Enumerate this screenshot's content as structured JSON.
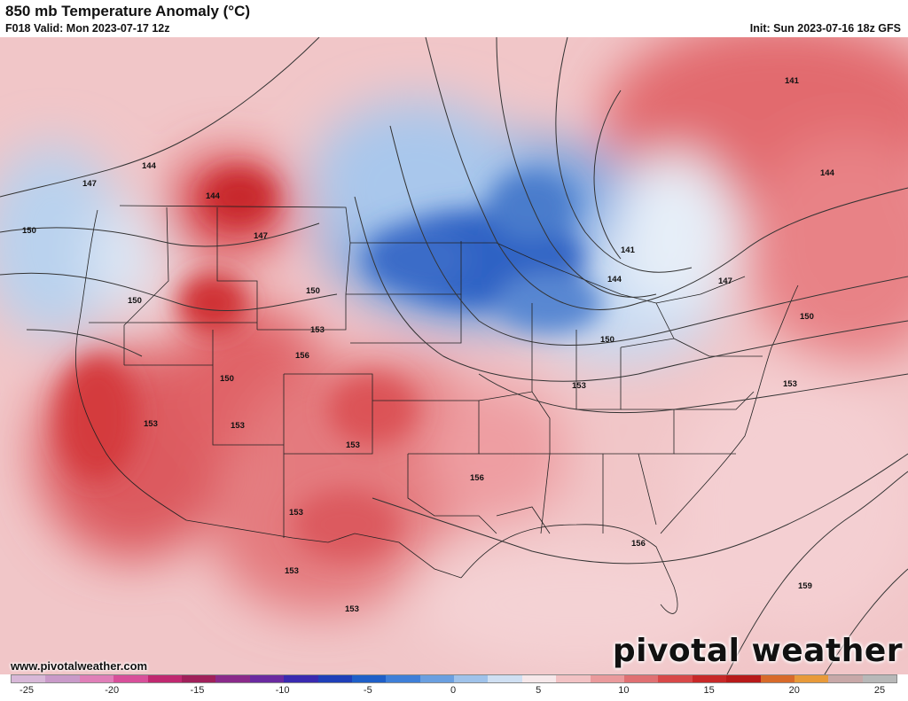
{
  "header": {
    "title": "850 mb Temperature Anomaly (°C)",
    "valid": "F018 Valid: Mon 2023-07-17 12z",
    "init": "Init: Sun 2023-07-16 18z GFS"
  },
  "footer": {
    "url": "www.pivotalweather.com",
    "brand": "pivotal weather"
  },
  "colorbar": {
    "ticks": [
      "-25",
      "-20",
      "-15",
      "-10",
      "-5",
      "0",
      "5",
      "10",
      "15",
      "20",
      "25"
    ],
    "colors": [
      "#d8b8d8",
      "#c99ac9",
      "#e07fb8",
      "#d84f9a",
      "#c02870",
      "#a0205a",
      "#8a2a8a",
      "#6a2aa0",
      "#3a2ab0",
      "#1f3fb8",
      "#1f5fc8",
      "#3f7fd8",
      "#6a9fe0",
      "#9fc2ea",
      "#cfdff2",
      "#f6e8ea",
      "#f2c2c4",
      "#ea9a9c",
      "#e07072",
      "#d84848",
      "#c82828",
      "#b81a1a",
      "#d86a2a",
      "#e89a3a",
      "#c8a8a8",
      "#b8b8b8"
    ]
  },
  "contour_labels": [
    {
      "text": "141"
    },
    {
      "text": "144"
    },
    {
      "text": "147"
    },
    {
      "text": "150"
    },
    {
      "text": "153"
    },
    {
      "text": "156"
    },
    {
      "text": "159"
    }
  ]
}
